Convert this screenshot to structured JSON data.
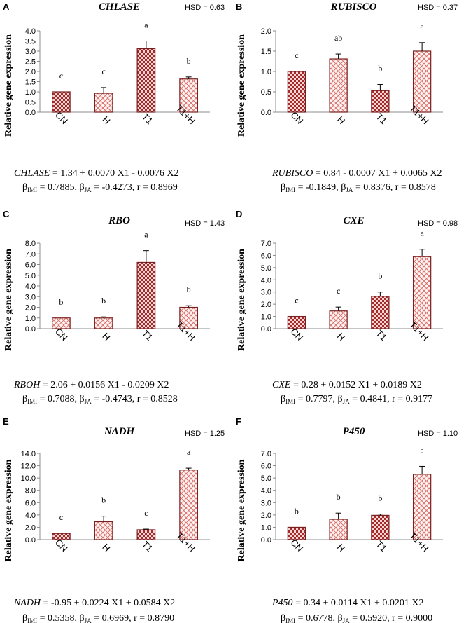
{
  "figure": {
    "colors": {
      "dark_bar": "#a32a2a",
      "light_bar": "#e9a7a2",
      "bar_edge": "#7a1f1f"
    },
    "ylabel": "Relative gene expression"
  },
  "chart_data": [
    {
      "type": "bar",
      "panel": "A",
      "title": "CHLASE",
      "hsd": "HSD = 0.63",
      "ylabel": "Relative gene expression",
      "categories": [
        "CN",
        "H",
        "T1",
        "T1+H"
      ],
      "values": [
        1.0,
        0.93,
        3.12,
        1.63
      ],
      "errors": [
        0.0,
        0.28,
        0.38,
        0.1
      ],
      "letters": [
        "c",
        "c",
        "a",
        "b"
      ],
      "patterns": [
        "dark",
        "light",
        "dark",
        "light"
      ],
      "ylim": [
        0,
        4
      ],
      "yticks": [
        "0.0",
        "0.5",
        "1.0",
        "1.5",
        "2.0",
        "2.5",
        "3.0",
        "3.5",
        "4.0"
      ],
      "equation": {
        "gene": "CHLASE",
        "rhs": " = 1.34 + 0.0070 X1 - 0.0076 X2",
        "b1": " = 0.7885, ",
        "b2": " = -0.4273, r = 0.8969",
        "b1_sub": "IMI",
        "b2_sub": "JA",
        "beta": "β"
      }
    },
    {
      "type": "bar",
      "panel": "B",
      "title": "RUBISCO",
      "hsd": "HSD = 0.37",
      "ylabel": "Relative gene expression",
      "categories": [
        "CN",
        "H",
        "T1",
        "T1+H"
      ],
      "values": [
        1.0,
        1.31,
        0.53,
        1.5
      ],
      "errors": [
        0.0,
        0.12,
        0.15,
        0.21
      ],
      "letters": [
        "c",
        "ab",
        "b",
        "a"
      ],
      "patterns": [
        "dark",
        "light",
        "dark",
        "light"
      ],
      "ylim": [
        0,
        2
      ],
      "yticks": [
        "0.0",
        "0.5",
        "1.0",
        "1.5",
        "2.0"
      ],
      "equation": {
        "gene": "RUBISCO",
        "rhs": " = 0.84 - 0.0007 X1 + 0.0065 X2",
        "b1": " = -0.1849, ",
        "b2": " = 0.8376, r = 0.8578",
        "b1_sub": "IMI",
        "b2_sub": "JA",
        "beta": "β"
      }
    },
    {
      "type": "bar",
      "panel": "C",
      "title": "RBO",
      "hsd": "HSD = 1.43",
      "ylabel": "Relative gene expression",
      "categories": [
        "CN",
        "H",
        "T1",
        "T1+H"
      ],
      "values": [
        1.0,
        1.0,
        6.2,
        2.0
      ],
      "errors": [
        0.0,
        0.1,
        1.1,
        0.15
      ],
      "letters": [
        "b",
        "b",
        "a",
        "b"
      ],
      "patterns": [
        "light",
        "light",
        "dark",
        "light"
      ],
      "ylim": [
        0,
        8
      ],
      "yticks": [
        "0.0",
        "1.0",
        "2.0",
        "3.0",
        "4.0",
        "5.0",
        "6.0",
        "7.0",
        "8.0"
      ],
      "equation": {
        "gene": "RBOH",
        "rhs": " = 2.06 + 0.0156 X1 - 0.0209 X2",
        "b1": " = 0.7088, ",
        "b2": " = -0.4743, r = 0.8528",
        "b1_sub": "IMI",
        "b2_sub": "JA",
        "beta": "β"
      }
    },
    {
      "type": "bar",
      "panel": "D",
      "title": "CXE",
      "hsd": "HSD = 0.98",
      "ylabel": "Relative gene expression",
      "categories": [
        "CN",
        "H",
        "T1",
        "T1+H"
      ],
      "values": [
        1.0,
        1.45,
        2.65,
        5.9
      ],
      "errors": [
        0.0,
        0.32,
        0.35,
        0.6
      ],
      "letters": [
        "c",
        "c",
        "b",
        "a"
      ],
      "patterns": [
        "dark",
        "light",
        "dark",
        "light"
      ],
      "ylim": [
        0,
        7
      ],
      "yticks": [
        "0.0",
        "1.0",
        "2.0",
        "3.0",
        "4.0",
        "5.0",
        "6.0",
        "7.0"
      ],
      "equation": {
        "gene": "CXE",
        "rhs": " = 0.28 + 0.0152 X1 + 0.0189 X2",
        "b1": " = 0.7797, ",
        "b2": " = 0.4841, r = 0.9177",
        "b1_sub": "IMI",
        "b2_sub": "JA",
        "beta": "β"
      }
    },
    {
      "type": "bar",
      "panel": "E",
      "title": "NADH",
      "hsd": "HSD = 1.25",
      "ylabel": "Relative gene expression",
      "categories": [
        "CN",
        "H",
        "T1",
        "T1+H"
      ],
      "values": [
        1.0,
        2.9,
        1.6,
        11.3
      ],
      "errors": [
        0.0,
        0.9,
        0.1,
        0.3
      ],
      "letters": [
        "c",
        "b",
        "c",
        "a"
      ],
      "patterns": [
        "dark",
        "light",
        "dark",
        "light"
      ],
      "ylim": [
        0,
        14
      ],
      "yticks": [
        "0.0",
        "2.0",
        "4.0",
        "6.0",
        "8.0",
        "10.0",
        "12.0",
        "14.0"
      ],
      "equation": {
        "gene": "NADH",
        "rhs": " = -0.95 + 0.0224 X1 + 0.0584 X2",
        "b1": " = 0.5358, ",
        "b2": " = 0.6969, r = 0.8790",
        "b1_sub": "IMI",
        "b2_sub": "JA",
        "beta": "β"
      }
    },
    {
      "type": "bar",
      "panel": "F",
      "title": "P450",
      "hsd": "HSD = 1.10",
      "ylabel": "Relative gene expression",
      "categories": [
        "CN",
        "H",
        "T1",
        "T1+H"
      ],
      "values": [
        1.0,
        1.65,
        1.97,
        5.3
      ],
      "errors": [
        0.0,
        0.5,
        0.1,
        0.65
      ],
      "letters": [
        "b",
        "b",
        "b",
        "a"
      ],
      "patterns": [
        "dark",
        "light",
        "dark",
        "light"
      ],
      "ylim": [
        0,
        7
      ],
      "yticks": [
        "0.0",
        "1.0",
        "2.0",
        "3.0",
        "4.0",
        "5.0",
        "6.0",
        "7.0"
      ],
      "equation": {
        "gene": "P450",
        "rhs": " = 0.34 + 0.0114 X1 + 0.0201 X2",
        "b1": " = 0.6778, ",
        "b2": " = 0.5920, r = 0.9000",
        "b1_sub": "IMI",
        "b2_sub": "JA",
        "beta": "β"
      }
    }
  ]
}
